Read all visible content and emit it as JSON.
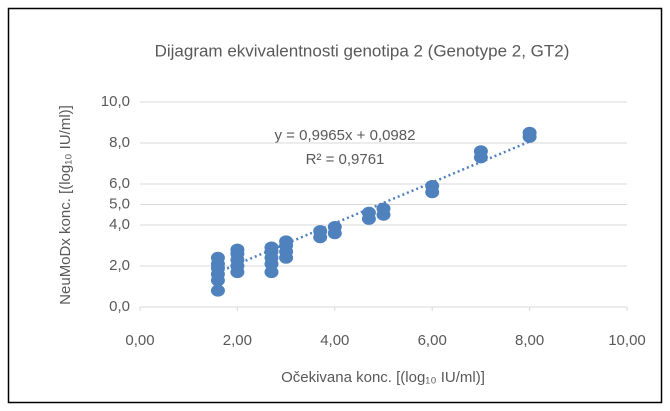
{
  "chart_data": {
    "type": "scatter",
    "title": "Dijagram ekvivalentnosti genotipa 2 (Genotype 2, GT2)",
    "x_label": "Očekivana konc. [(log₁₀ IU/ml)]",
    "y_label": "NeuMoDx konc. [(log₁₀ IU/ml)]",
    "equation": "y = 0,9965x + 0,0982",
    "r_squared": "R² = 0,9761",
    "trendline": {
      "slope": 0.9965,
      "intercept": 0.0982
    },
    "color": "#4f81bd",
    "grid": true,
    "x": [
      1.6,
      1.6,
      1.6,
      1.6,
      1.6,
      1.6,
      2,
      2,
      2,
      2,
      2,
      2.7,
      2.7,
      2.7,
      2.7,
      2.7,
      3,
      3,
      3,
      3,
      3.7,
      3.7,
      4,
      4,
      4.7,
      4.7,
      5,
      5,
      6,
      6,
      7,
      7,
      8,
      8
    ],
    "values": [
      0.8,
      1.3,
      1.6,
      1.9,
      2.1,
      2.4,
      1.7,
      2.0,
      2.3,
      2.6,
      2.8,
      1.7,
      2.1,
      2.4,
      2.7,
      2.9,
      2.4,
      2.7,
      3.0,
      3.2,
      3.4,
      3.7,
      3.6,
      3.9,
      4.3,
      4.6,
      4.5,
      4.8,
      5.6,
      5.9,
      7.3,
      7.6,
      8.3,
      8.5
    ],
    "xlim": [
      0,
      10
    ],
    "xticks": [
      {
        "value": 0,
        "label": "0,00"
      },
      {
        "value": 2,
        "label": "2,00"
      },
      {
        "value": 4,
        "label": "4,00"
      },
      {
        "value": 6,
        "label": "6,00"
      },
      {
        "value": 8,
        "label": "8,00"
      },
      {
        "value": 10,
        "label": "10,00"
      }
    ],
    "ylim": [
      0,
      10
    ],
    "yticks": [
      {
        "value": 0,
        "label": "0,0"
      },
      {
        "value": 2,
        "label": "2,0"
      },
      {
        "value": 4,
        "label": "4,0"
      },
      {
        "value": 5,
        "label": "5,0"
      },
      {
        "value": 6,
        "label": "6,0"
      },
      {
        "value": 8,
        "label": "8,0"
      },
      {
        "value": 10,
        "label": "10,0"
      }
    ]
  }
}
